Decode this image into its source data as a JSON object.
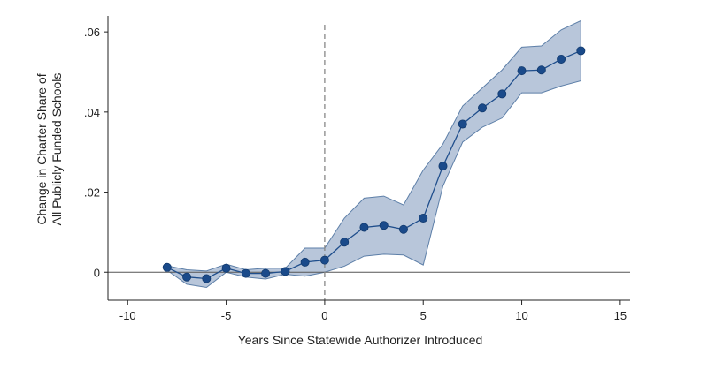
{
  "chart_data": {
    "type": "line",
    "title": "",
    "xlabel": "Years Since Statewide Authorizer Introduced",
    "ylabel_lines": [
      "Change in Charter Share of",
      "All Publicly Funded Schools"
    ],
    "xlim": [
      -11,
      15.5
    ],
    "ylim": [
      -0.007,
      0.064
    ],
    "x_ticks": [
      -10,
      -5,
      0,
      5,
      10,
      15
    ],
    "x_tick_labels": [
      "-10",
      "-5",
      "0",
      "5",
      "10",
      "15"
    ],
    "y_ticks": [
      0,
      0.02,
      0.04,
      0.06
    ],
    "y_tick_labels": [
      "0",
      ".02",
      ".04",
      ".06"
    ],
    "reference_lines": {
      "horizontal_at_y": 0,
      "vertical_dashed_at_x": 0
    },
    "grid": false,
    "legend": "none",
    "series": [
      {
        "x": [
          -8,
          -7,
          -6,
          -5,
          -4,
          -3,
          -2,
          -1,
          0,
          1,
          2,
          3,
          4,
          5,
          6,
          7,
          8,
          9,
          10,
          11,
          12,
          13
        ],
        "values": [
          0.0012,
          -0.0012,
          -0.0016,
          0.001,
          -0.0003,
          -0.0003,
          0.0002,
          0.0025,
          0.003,
          0.0075,
          0.0112,
          0.0117,
          0.0107,
          0.0135,
          0.0265,
          0.037,
          0.041,
          0.0445,
          0.0503,
          0.0505,
          0.0532,
          0.0553
        ],
        "ci_lower": [
          0.0005,
          -0.003,
          -0.0038,
          0.0,
          -0.0012,
          -0.0017,
          -0.0005,
          -0.001,
          0.0,
          0.0015,
          0.004,
          0.0045,
          0.0043,
          0.0018,
          0.0215,
          0.0325,
          0.0362,
          0.0385,
          0.0448,
          0.0448,
          0.0465,
          0.0478
        ],
        "ci_upper": [
          0.0016,
          0.0006,
          0.0003,
          0.002,
          0.0006,
          0.001,
          0.001,
          0.006,
          0.006,
          0.0135,
          0.0185,
          0.019,
          0.0168,
          0.0255,
          0.032,
          0.0415,
          0.046,
          0.0505,
          0.0562,
          0.0565,
          0.0605,
          0.0628
        ]
      }
    ],
    "colors": {
      "line": "#1f4e8c",
      "marker": "#1a4a8a",
      "ci_fill": "#b8c6da",
      "ci_edge": "#5d7fa8",
      "axis": "#222222",
      "dashed": "#888888"
    }
  }
}
